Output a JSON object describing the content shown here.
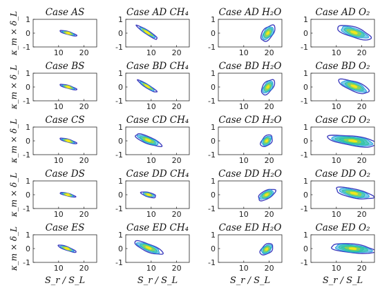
{
  "figure": {
    "xlabel": "S_r / S_L",
    "ylabel": "κ_m × δ_L",
    "x_ticks": [
      "10",
      "20"
    ],
    "y_ticks": [
      "1",
      "0",
      "-1"
    ],
    "colors": {
      "outer": "#3f3fbf",
      "mid1": "#1f9fdf",
      "mid2": "#2ec4a0",
      "mid3": "#9ad83c",
      "inner": "#f3e61b",
      "axis": "#262626"
    }
  },
  "chart_data": [
    {
      "title": "Case AS",
      "type": "contour",
      "xlim": [
        0,
        25
      ],
      "ylim": [
        -1,
        1
      ],
      "center": [
        13.8,
        0.0
      ],
      "spread_x": 0.5,
      "spread_y": 0.55,
      "tilt_deg": 74,
      "levels": 4
    },
    {
      "title": "Case AD CH₄",
      "type": "contour",
      "xlim": [
        0,
        25
      ],
      "ylim": [
        -1,
        1
      ],
      "center": [
        8.5,
        0.05
      ],
      "spread_x": 4.2,
      "spread_y": 0.12,
      "tilt_deg": -33,
      "levels": 4
    },
    {
      "title": "Case AD H₂O",
      "type": "contour",
      "xlim": [
        0,
        25
      ],
      "ylim": [
        -1,
        1
      ],
      "center": [
        19.5,
        0.0
      ],
      "spread_x": 3.2,
      "spread_y": 0.32,
      "tilt_deg": 52,
      "levels": 5
    },
    {
      "title": "Case AD O₂",
      "type": "contour",
      "xlim": [
        0,
        25
      ],
      "ylim": [
        -1,
        1
      ],
      "center": [
        17.0,
        0.05
      ],
      "spread_x": 6.0,
      "spread_y": 0.32,
      "tilt_deg": -18,
      "levels": 5
    },
    {
      "title": "Case BS",
      "type": "contour",
      "xlim": [
        0,
        25
      ],
      "ylim": [
        -1,
        1
      ],
      "center": [
        13.8,
        0.0
      ],
      "spread_x": 0.5,
      "spread_y": 0.55,
      "tilt_deg": 74,
      "levels": 4
    },
    {
      "title": "Case BD CH₄",
      "type": "contour",
      "xlim": [
        0,
        25
      ],
      "ylim": [
        -1,
        1
      ],
      "center": [
        8.5,
        0.05
      ],
      "spread_x": 3.8,
      "spread_y": 0.11,
      "tilt_deg": -32,
      "levels": 4
    },
    {
      "title": "Case BD H₂O",
      "type": "contour",
      "xlim": [
        0,
        25
      ],
      "ylim": [
        -1,
        1
      ],
      "center": [
        19.5,
        0.0
      ],
      "spread_x": 3.0,
      "spread_y": 0.3,
      "tilt_deg": 52,
      "levels": 5
    },
    {
      "title": "Case BD O₂",
      "type": "contour",
      "xlim": [
        0,
        25
      ],
      "ylim": [
        -1,
        1
      ],
      "center": [
        17.0,
        0.05
      ],
      "spread_x": 5.5,
      "spread_y": 0.3,
      "tilt_deg": -20,
      "levels": 5
    },
    {
      "title": "Case CS",
      "type": "contour",
      "xlim": [
        0,
        25
      ],
      "ylim": [
        -1,
        1
      ],
      "center": [
        13.8,
        0.0
      ],
      "spread_x": 0.5,
      "spread_y": 0.55,
      "tilt_deg": 74,
      "levels": 4
    },
    {
      "title": "Case CD CH₄",
      "type": "contour",
      "xlim": [
        0,
        25
      ],
      "ylim": [
        -1,
        1
      ],
      "center": [
        8.8,
        0.05
      ],
      "spread_x": 4.8,
      "spread_y": 0.22,
      "tilt_deg": -22,
      "levels": 5
    },
    {
      "title": "Case CD H₂O",
      "type": "contour",
      "xlim": [
        0,
        25
      ],
      "ylim": [
        -1,
        1
      ],
      "center": [
        19.0,
        0.0
      ],
      "spread_x": 2.4,
      "spread_y": 0.28,
      "tilt_deg": 45,
      "levels": 5
    },
    {
      "title": "Case CD O₂",
      "type": "contour",
      "xlim": [
        0,
        25
      ],
      "ylim": [
        -1,
        1
      ],
      "center": [
        16.5,
        0.0
      ],
      "spread_x": 8.5,
      "spread_y": 0.3,
      "tilt_deg": -8,
      "levels": 6
    },
    {
      "title": "Case DS",
      "type": "contour",
      "xlim": [
        0,
        25
      ],
      "ylim": [
        -1,
        1
      ],
      "center": [
        13.6,
        0.0
      ],
      "spread_x": 0.45,
      "spread_y": 0.5,
      "tilt_deg": 76,
      "levels": 4
    },
    {
      "title": "Case DD CH₄",
      "type": "contour",
      "xlim": [
        0,
        25
      ],
      "ylim": [
        -1,
        1
      ],
      "center": [
        9.0,
        0.0
      ],
      "spread_x": 2.6,
      "spread_y": 0.14,
      "tilt_deg": -15,
      "levels": 4
    },
    {
      "title": "Case DD H₂O",
      "type": "contour",
      "xlim": [
        0,
        25
      ],
      "ylim": [
        -1,
        1
      ],
      "center": [
        19.0,
        0.0
      ],
      "spread_x": 3.2,
      "spread_y": 0.26,
      "tilt_deg": 28,
      "levels": 5
    },
    {
      "title": "Case DD O₂",
      "type": "contour",
      "xlim": [
        0,
        25
      ],
      "ylim": [
        -1,
        1
      ],
      "center": [
        17.0,
        0.1
      ],
      "spread_x": 6.5,
      "spread_y": 0.28,
      "tilt_deg": -12,
      "levels": 5
    },
    {
      "title": "Case ES",
      "type": "contour",
      "xlim": [
        0,
        25
      ],
      "ylim": [
        -1,
        1
      ],
      "center": [
        13.3,
        0.0
      ],
      "spread_x": 0.6,
      "spread_y": 0.6,
      "tilt_deg": 70,
      "levels": 4
    },
    {
      "title": "Case ED CH₄",
      "type": "contour",
      "xlim": [
        0,
        25
      ],
      "ylim": [
        -1,
        1
      ],
      "center": [
        9.0,
        0.05
      ],
      "spread_x": 5.2,
      "spread_y": 0.24,
      "tilt_deg": -22,
      "levels": 5
    },
    {
      "title": "Case ED H₂O",
      "type": "contour",
      "xlim": [
        0,
        25
      ],
      "ylim": [
        -1,
        1
      ],
      "center": [
        19.0,
        -0.05
      ],
      "spread_x": 2.5,
      "spread_y": 0.28,
      "tilt_deg": 38,
      "levels": 5
    },
    {
      "title": "Case ED O₂",
      "type": "contour",
      "xlim": [
        0,
        25
      ],
      "ylim": [
        -1,
        1
      ],
      "center": [
        16.5,
        0.0
      ],
      "spread_x": 7.5,
      "spread_y": 0.28,
      "tilt_deg": -6,
      "levels": 6
    }
  ]
}
